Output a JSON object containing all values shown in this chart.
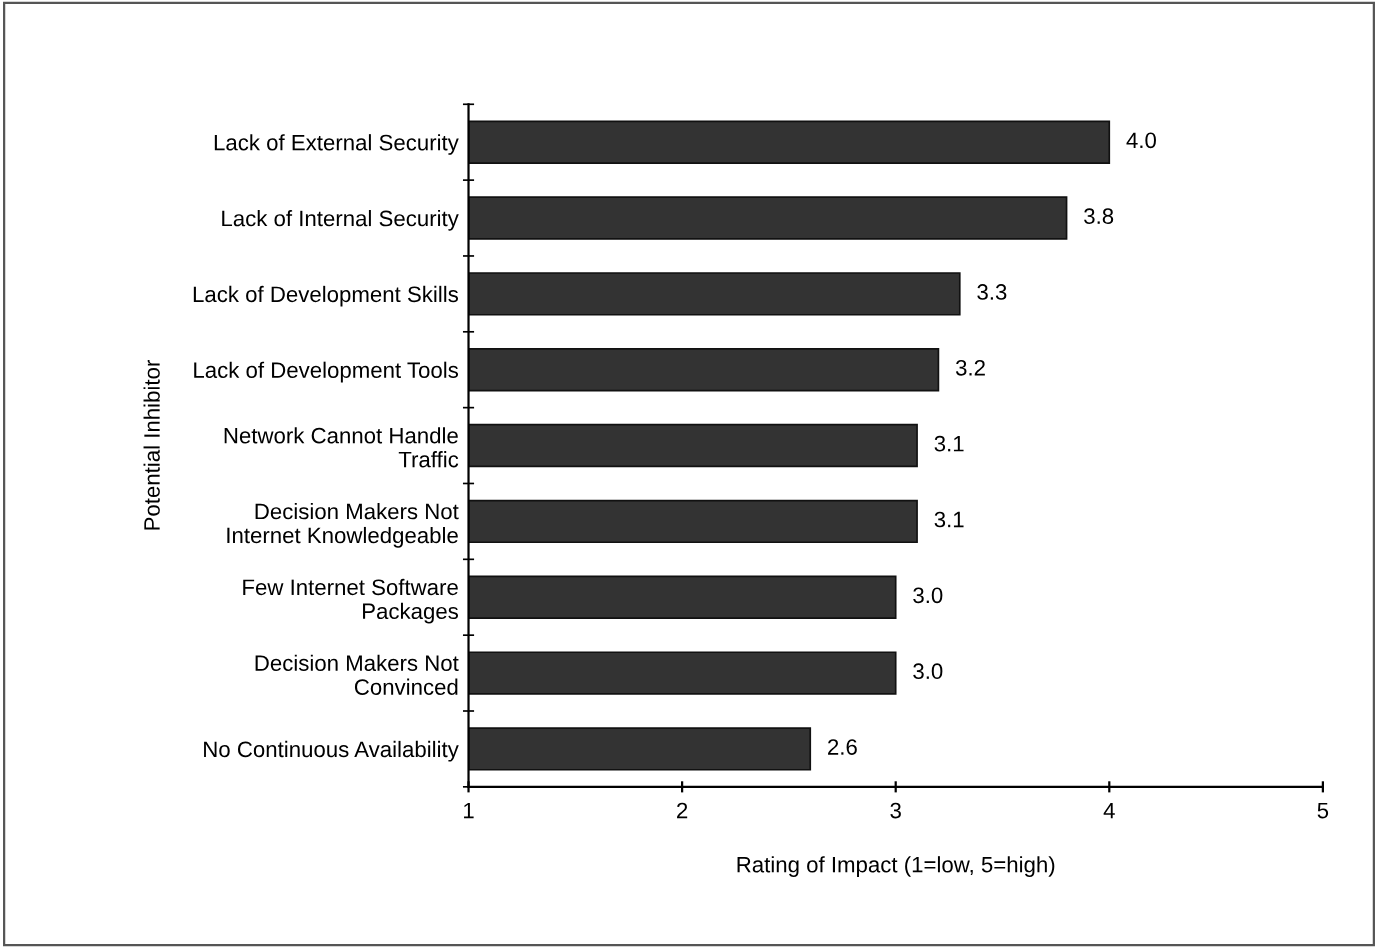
{
  "chart_data": {
    "type": "bar",
    "orientation": "horizontal",
    "xlabel": "Rating of Impact (1=low, 5=high)",
    "ylabel": "Potential Inhibitor",
    "categories": [
      "Lack of External Security",
      "Lack of Internal Security",
      "Lack of Development Skills",
      "Lack of Development Tools",
      "Network Cannot Handle\nTraffic",
      "Decision Makers Not\nInternet Knowledgeable",
      "Few Internet Software\nPackages",
      "Decision Makers Not\nConvinced",
      "No Continuous Availability"
    ],
    "values": [
      4.0,
      3.8,
      3.3,
      3.2,
      3.1,
      3.1,
      3.0,
      3.0,
      2.6
    ],
    "value_labels": [
      "4.0",
      "3.8",
      "3.3",
      "3.2",
      "3.1",
      "3.1",
      "3.0",
      "3.0",
      "2.6"
    ],
    "color": "#333333",
    "xlim": [
      1,
      5
    ],
    "xticks": [
      1,
      2,
      3,
      4,
      5
    ],
    "grid": false,
    "legend": false
  }
}
